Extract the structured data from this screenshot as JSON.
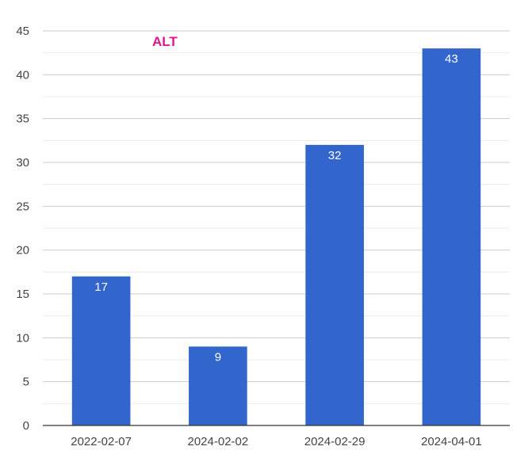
{
  "chart_data": {
    "type": "bar",
    "title": "",
    "xlabel": "",
    "ylabel": "",
    "categories": [
      "2022-02-07",
      "2024-02-02",
      "2024-02-29",
      "2024-04-01"
    ],
    "series": [
      {
        "name": "ALT",
        "values": [
          17,
          9,
          32,
          43
        ]
      }
    ],
    "ylim": [
      0,
      45
    ],
    "yticks": [
      0,
      5,
      10,
      15,
      20,
      25,
      30,
      35,
      40,
      45
    ],
    "grid": true,
    "minor_grid": true,
    "legend_position": "top-left",
    "data_labels": true,
    "colors": {
      "bar": "#3366cc",
      "legend": "#e0168c",
      "grid_major": "#cccccc",
      "grid_minor": "#ebebeb",
      "baseline": "#333333"
    }
  }
}
